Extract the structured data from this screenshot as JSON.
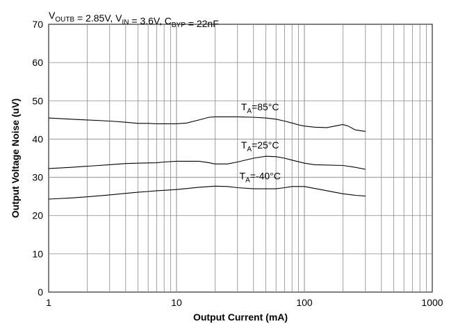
{
  "chart_data": {
    "type": "line",
    "conditions": {
      "parts": [
        {
          "text": "V",
          "sub": "OUTB"
        },
        {
          "text": " = 2.85V, V",
          "sub": "IN"
        },
        {
          "text": " = 3.6V, C",
          "sub": "BYP"
        },
        {
          "text": " = 22nF",
          "sub": ""
        }
      ]
    },
    "xlabel": "Output Current (mA)",
    "ylabel": "Output Voltage Noise (uV)",
    "xscale": "log",
    "xlim": [
      1,
      1000
    ],
    "ylim": [
      0,
      70
    ],
    "x_ticks": [
      {
        "value": 1,
        "label": "1"
      },
      {
        "value": 10,
        "label": "10"
      },
      {
        "value": 100,
        "label": "100"
      },
      {
        "value": 1000,
        "label": "1000"
      }
    ],
    "y_ticks": [
      {
        "value": 0,
        "label": "0"
      },
      {
        "value": 10,
        "label": "10"
      },
      {
        "value": 20,
        "label": "20"
      },
      {
        "value": 30,
        "label": "30"
      },
      {
        "value": 40,
        "label": "40"
      },
      {
        "value": 50,
        "label": "50"
      },
      {
        "value": 60,
        "label": "60"
      },
      {
        "value": 70,
        "label": "70"
      }
    ],
    "grid": true,
    "series": [
      {
        "name": "TA=85°C",
        "label_parts": {
          "pre": "T",
          "sub": "A",
          "post": "=85°C"
        },
        "label_at": [
          45,
          47.5
        ],
        "points": [
          [
            1,
            45.5
          ],
          [
            1.5,
            45.2
          ],
          [
            2,
            45.0
          ],
          [
            3,
            44.7
          ],
          [
            4,
            44.4
          ],
          [
            5,
            44.1
          ],
          [
            6,
            44.1
          ],
          [
            7,
            44.0
          ],
          [
            8,
            44.0
          ],
          [
            10,
            44.0
          ],
          [
            12,
            44.2
          ],
          [
            15,
            45.0
          ],
          [
            18,
            45.7
          ],
          [
            20,
            45.8
          ],
          [
            30,
            45.8
          ],
          [
            40,
            45.7
          ],
          [
            50,
            45.5
          ],
          [
            60,
            45.2
          ],
          [
            70,
            44.7
          ],
          [
            80,
            44.2
          ],
          [
            90,
            43.7
          ],
          [
            100,
            43.4
          ],
          [
            120,
            43.1
          ],
          [
            150,
            43.0
          ],
          [
            180,
            43.5
          ],
          [
            200,
            43.8
          ],
          [
            220,
            43.4
          ],
          [
            250,
            42.4
          ],
          [
            300,
            42.0
          ]
        ]
      },
      {
        "name": "TA=25°C",
        "label_parts": {
          "pre": "T",
          "sub": "A",
          "post": "=25°C"
        },
        "label_at": [
          45,
          37.5
        ],
        "points": [
          [
            1,
            32.3
          ],
          [
            1.5,
            32.6
          ],
          [
            2,
            32.9
          ],
          [
            3,
            33.3
          ],
          [
            4,
            33.6
          ],
          [
            5,
            33.7
          ],
          [
            7,
            33.8
          ],
          [
            8,
            34.0
          ],
          [
            10,
            34.2
          ],
          [
            15,
            34.2
          ],
          [
            18,
            33.8
          ],
          [
            20,
            33.5
          ],
          [
            25,
            33.5
          ],
          [
            30,
            34.0
          ],
          [
            40,
            35.0
          ],
          [
            50,
            35.5
          ],
          [
            60,
            35.4
          ],
          [
            70,
            35.0
          ],
          [
            80,
            34.5
          ],
          [
            100,
            33.7
          ],
          [
            120,
            33.3
          ],
          [
            200,
            33.1
          ],
          [
            250,
            32.6
          ],
          [
            300,
            32.1
          ]
        ]
      },
      {
        "name": "TA=-40°C",
        "label_parts": {
          "pre": "T",
          "sub": "A",
          "post": "=-40°C"
        },
        "label_at": [
          45,
          29.5
        ],
        "points": [
          [
            1,
            24.3
          ],
          [
            1.5,
            24.6
          ],
          [
            2,
            24.9
          ],
          [
            3,
            25.4
          ],
          [
            4,
            25.8
          ],
          [
            5,
            26.1
          ],
          [
            6,
            26.3
          ],
          [
            7,
            26.5
          ],
          [
            8,
            26.6
          ],
          [
            10,
            26.8
          ],
          [
            15,
            27.4
          ],
          [
            20,
            27.7
          ],
          [
            25,
            27.6
          ],
          [
            30,
            27.3
          ],
          [
            40,
            27.0
          ],
          [
            50,
            27.0
          ],
          [
            60,
            27.0
          ],
          [
            70,
            27.3
          ],
          [
            80,
            27.6
          ],
          [
            100,
            27.6
          ],
          [
            120,
            27.1
          ],
          [
            150,
            26.5
          ],
          [
            200,
            25.7
          ],
          [
            250,
            25.3
          ],
          [
            300,
            25.1
          ]
        ]
      }
    ]
  }
}
